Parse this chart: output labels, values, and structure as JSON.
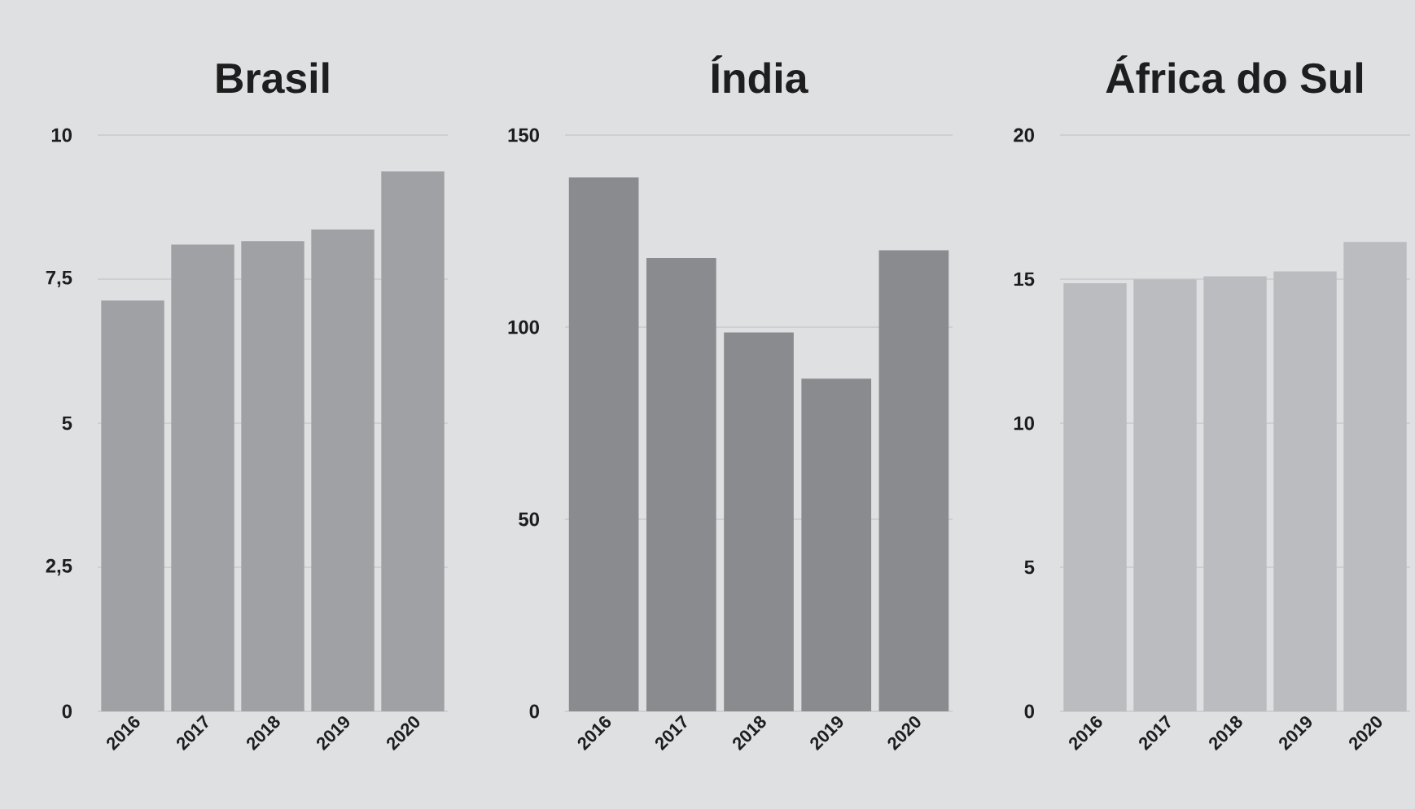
{
  "chart_data": [
    {
      "type": "bar",
      "title": "Brasil",
      "categories": [
        "2016",
        "2017",
        "2018",
        "2019",
        "2020"
      ],
      "values": [
        7.13,
        8.1,
        8.16,
        8.36,
        9.37
      ],
      "color": "#a0a1a4",
      "ylim": [
        0,
        10
      ],
      "yticks": [
        0,
        {
          "value": 2.5,
          "label": "2,5"
        },
        5,
        {
          "value": 7.5,
          "label": "7,5"
        },
        10
      ],
      "grid": "y"
    },
    {
      "type": "bar",
      "title": "Índia",
      "categories": [
        "2016",
        "2017",
        "2018",
        "2019",
        "2020"
      ],
      "values": [
        139,
        118,
        98.6,
        86.6,
        120
      ],
      "color": "#8a8b8e",
      "ylim": [
        0,
        150
      ],
      "yticks": [
        0,
        50,
        100,
        150
      ],
      "grid": "y"
    },
    {
      "type": "bar",
      "title": "África do Sul",
      "categories": [
        "2016",
        "2017",
        "2018",
        "2019",
        "2020"
      ],
      "values": [
        14.86,
        14.99,
        15.1,
        15.27,
        16.29
      ],
      "color": "#bbbcbf",
      "ylim": [
        0,
        20
      ],
      "yticks": [
        0,
        5,
        10,
        15,
        20
      ],
      "grid": "y"
    }
  ]
}
